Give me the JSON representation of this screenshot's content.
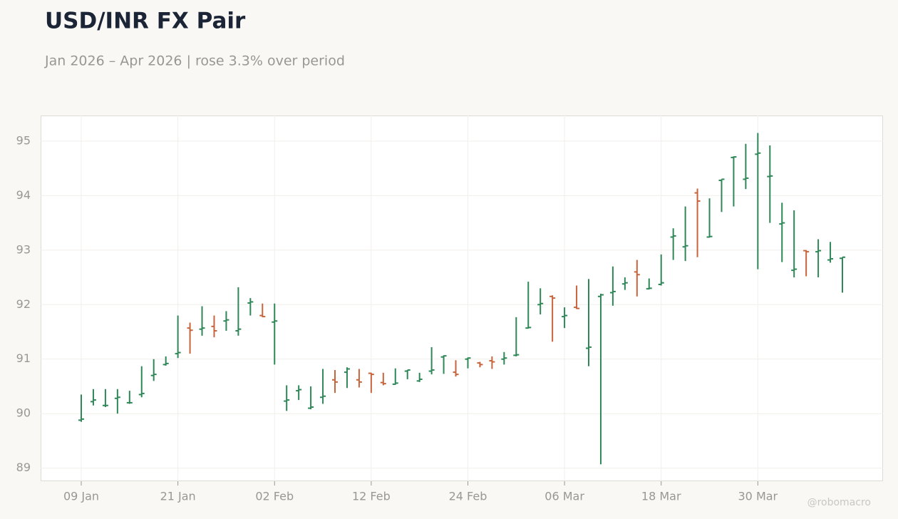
{
  "chart_data": {
    "type": "ohlc",
    "title": "USD/INR FX Pair",
    "subtitle": "Jan 2026 – Apr 2026 | rose 3.3% over period",
    "watermark": "@robomacro",
    "categories": [
      "09 Jan",
      null,
      null,
      null,
      null,
      null,
      null,
      null,
      "21 Jan",
      null,
      null,
      null,
      null,
      null,
      null,
      null,
      "02 Feb",
      null,
      null,
      null,
      null,
      null,
      null,
      null,
      "12 Feb",
      null,
      null,
      null,
      null,
      null,
      null,
      null,
      "24 Feb",
      null,
      null,
      null,
      null,
      null,
      null,
      null,
      "06 Mar",
      null,
      null,
      null,
      null,
      null,
      null,
      null,
      "18 Mar",
      null,
      null,
      null,
      null,
      null,
      null,
      null,
      "30 Mar",
      null,
      null,
      null,
      null,
      null,
      null,
      null
    ],
    "open": [
      89.88,
      90.22,
      90.15,
      90.28,
      90.2,
      90.35,
      90.7,
      90.9,
      91.1,
      91.57,
      91.55,
      91.6,
      91.7,
      91.52,
      92.03,
      91.8,
      91.68,
      90.23,
      90.42,
      90.1,
      90.3,
      90.62,
      90.76,
      90.62,
      90.74,
      90.57,
      90.54,
      90.78,
      90.6,
      90.78,
      91.04,
      90.76,
      91.0,
      90.93,
      90.97,
      91.0,
      91.07,
      91.57,
      92.0,
      92.15,
      91.78,
      91.95,
      91.2,
      92.15,
      92.22,
      92.38,
      92.6,
      92.29,
      92.37,
      93.24,
      93.06,
      94.05,
      93.24,
      94.28,
      94.7,
      94.3,
      94.76,
      94.35,
      93.48,
      92.63,
      92.99,
      92.97,
      92.82,
      92.85
    ],
    "high": [
      90.35,
      90.45,
      90.45,
      90.45,
      90.42,
      90.87,
      91.0,
      91.05,
      91.8,
      91.67,
      91.97,
      91.8,
      91.88,
      92.32,
      92.12,
      92.02,
      92.02,
      90.52,
      90.52,
      90.5,
      90.82,
      90.8,
      90.85,
      90.82,
      90.75,
      90.75,
      90.83,
      90.8,
      90.75,
      91.22,
      91.07,
      90.98,
      91.03,
      90.95,
      91.05,
      91.13,
      91.77,
      92.42,
      92.3,
      92.17,
      91.95,
      92.35,
      92.47,
      92.2,
      92.7,
      92.5,
      92.82,
      92.48,
      92.92,
      93.4,
      93.8,
      94.13,
      93.95,
      94.3,
      94.72,
      94.95,
      95.15,
      94.92,
      93.87,
      93.73,
      93.0,
      93.2,
      93.15,
      92.87
    ],
    "low": [
      89.85,
      90.15,
      90.12,
      90.0,
      90.18,
      90.3,
      90.6,
      90.88,
      91.02,
      91.1,
      91.43,
      91.4,
      91.52,
      91.43,
      91.8,
      91.77,
      90.9,
      90.05,
      90.25,
      90.08,
      90.18,
      90.38,
      90.47,
      90.48,
      90.38,
      90.52,
      90.53,
      90.63,
      90.58,
      90.72,
      90.73,
      90.68,
      90.83,
      90.85,
      90.82,
      90.9,
      91.05,
      91.56,
      91.82,
      91.32,
      91.57,
      91.92,
      90.87,
      89.07,
      91.98,
      92.27,
      92.15,
      92.28,
      92.35,
      92.82,
      92.8,
      92.87,
      93.23,
      93.7,
      93.8,
      94.12,
      92.65,
      93.5,
      92.78,
      92.5,
      92.52,
      92.5,
      92.77,
      92.22
    ],
    "close": [
      89.9,
      90.25,
      90.15,
      90.3,
      90.2,
      90.37,
      90.72,
      90.92,
      91.12,
      91.53,
      91.57,
      91.52,
      91.72,
      91.55,
      92.05,
      91.78,
      91.7,
      90.25,
      90.44,
      90.12,
      90.32,
      90.58,
      90.82,
      90.58,
      90.72,
      90.55,
      90.56,
      90.8,
      90.63,
      90.8,
      91.06,
      90.72,
      91.02,
      90.9,
      90.95,
      91.02,
      91.08,
      91.58,
      92.02,
      92.12,
      91.8,
      91.93,
      91.22,
      92.18,
      92.24,
      92.4,
      92.55,
      92.3,
      92.4,
      93.26,
      93.08,
      93.9,
      93.25,
      94.3,
      94.71,
      94.32,
      94.78,
      94.36,
      93.5,
      92.65,
      92.97,
      92.99,
      92.84,
      92.87
    ],
    "up_color": "#2e8757",
    "down_color": "#c8643c",
    "ylim": [
      88.76,
      95.47
    ],
    "yticks": [
      89,
      90,
      91,
      92,
      93,
      94,
      95
    ],
    "grid": true
  }
}
